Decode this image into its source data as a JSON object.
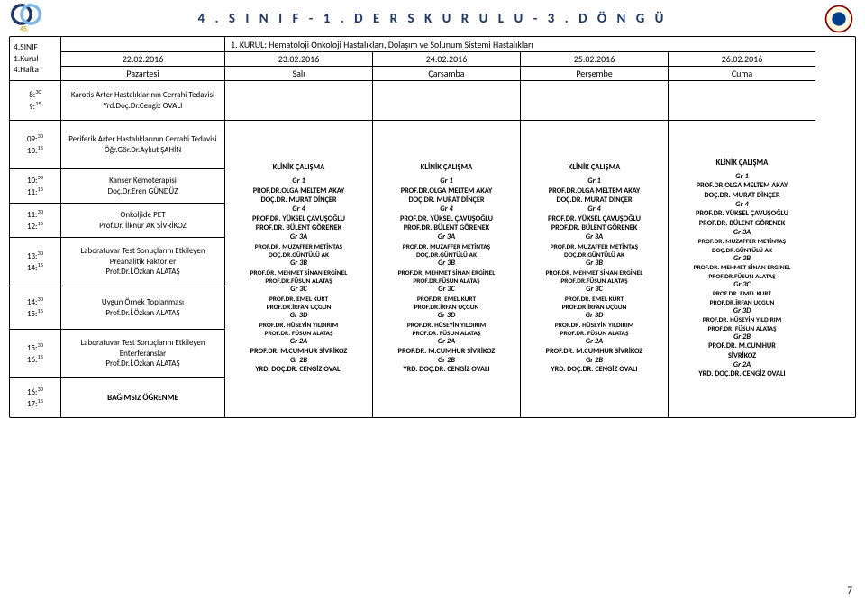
{
  "page_title": "4 . S I N I F -   1 . D E R S   K U R U L U -   3 . D Ö N G Ü",
  "page_number": "7",
  "meta": {
    "l1": "4.SINIF",
    "l2": "1.Kurul",
    "l3": "4.Hafta"
  },
  "kurul_title": "1. KURUL:  Hematoloji Onkoloji Hastalıkları, Dolaşım ve Solunum Sistemi Hastalıkları",
  "dates": [
    "22.02.2016",
    "23.02.2016",
    "24.02.2016",
    "25.02.2016",
    "26.02.2016"
  ],
  "days": [
    "Pazartesi",
    "Salı",
    "Çarşamba",
    "Perşembe",
    "Cuma"
  ],
  "time_rows": [
    {
      "t1": "8:",
      "s1": "30",
      "t2": "9:",
      "s2": "15"
    },
    {
      "t1": "09:",
      "s1": "30",
      "t2": "10:",
      "s2": "15"
    },
    {
      "t1": "10:",
      "s1": "30",
      "t2": "11:",
      "s2": "15"
    },
    {
      "t1": "11:",
      "s1": "30",
      "t2": "12:",
      "s2": "15"
    },
    {
      "t1": "13:",
      "s1": "30",
      "t2": "14:",
      "s2": "15"
    },
    {
      "t1": "14:",
      "s1": "30",
      "t2": "15:",
      "s2": "15"
    },
    {
      "t1": "15:",
      "s1": "30",
      "t2": "16:",
      "s2": "15"
    },
    {
      "t1": "16:",
      "s1": "30",
      "t2": "17:",
      "s2": "15"
    }
  ],
  "monday": {
    "r0": {
      "title": "Karotis Arter Hastalıklarının Cerrahi Tedavisi",
      "person": "Yrd.Doç.Dr.Cengiz OVALI"
    },
    "r1": {
      "title": "Periferik Arter Hastalıklarının Cerrahi Tedavisi",
      "person": "Öğr.Gör.Dr.Aykut ŞAHİN"
    },
    "r2": {
      "title": "Kanser Kemoterapisi",
      "person": "Doç.Dr.Eren GÜNDÜZ"
    },
    "r3": {
      "title": "Onkoljide PET",
      "person": "Prof.Dr. İlknur AK SİVRİKOZ"
    },
    "r4": {
      "title": "Laboratuvar Test Sonuçlarını Etkileyen Preanalitik Faktörler",
      "person": "Prof.Dr.İ.Özkan ALATAŞ"
    },
    "r5": {
      "title": "Uygun Örnek Toplanması",
      "person": "Prof.Dr.İ.Özkan ALATAŞ"
    },
    "r6": {
      "title": "Laboratuvar Test Sonuçlarını Etkileyen Enterferanslar",
      "person": "Prof.Dr.İ.Özkan ALATAŞ"
    },
    "r7": {
      "title": "BAĞIMSIZ ÖĞRENME"
    }
  },
  "klinik_block": {
    "header": "KLİNİK ÇALIŞMA",
    "lines": [
      "Gr 1",
      "PROF.DR.OLGA MELTEM AKAY",
      "DOÇ.DR. MURAT DİNÇER",
      "Gr 4",
      "PROF.DR. YÜKSEL ÇAVUŞOĞLU",
      "PROF.DR. BÜLENT GÖRENEK",
      "Gr 3A",
      "PROF.DR. MUZAFFER METİNTAŞ",
      "DOÇ.DR.GÜNTÜLÜ AK",
      "Gr 3B",
      "PROF.DR. MEHMET SİNAN ERGİNEL",
      "PROF.DR.FÜSUN ALATAŞ",
      "Gr 3C",
      "PROF.DR. EMEL KURT",
      "PROF.DR.İRFAN UÇGUN",
      "Gr 3D",
      "PROF.DR. HÜSEYİN YILDIRIM",
      "PROF.DR. FÜSUN ALATAŞ",
      "Gr 2A",
      "PROF.DR. M.CUMHUR SİVRİKOZ",
      "Gr 2B",
      "YRD. DOÇ.DR. CENGİZ OVALI"
    ],
    "italic_indices": [
      0,
      3,
      6,
      9,
      12,
      15,
      18,
      20
    ]
  },
  "klinik_block_friday": {
    "header": "KLİNİK ÇALIŞMA",
    "lines": [
      "Gr 1",
      "PROF.DR.OLGA MELTEM AKAY",
      "DOÇ.DR. MURAT DİNÇER",
      "Gr 4",
      "PROF.DR. YÜKSEL ÇAVUŞOĞLU",
      "PROF.DR. BÜLENT GÖRENEK",
      "Gr 3A",
      "PROF.DR. MUZAFFER METİNTAŞ",
      "DOÇ.DR.GÜNTÜLÜ AK",
      "Gr 3B",
      "PROF.DR. MEHMET SİNAN ERGİNEL",
      "PROF.DR.FÜSUN ALATAŞ",
      "Gr 3C",
      "PROF.DR. EMEL KURT",
      "PROF.DR.İRFAN UÇGUN",
      "Gr 3D",
      "PROF.DR. HÜSEYİN YILDIRIM",
      "PROF.DR. FÜSUN ALATAŞ",
      "Gr 2B",
      "PROF.DR. M.CUMHUR",
      "SİVRİKOZ",
      "Gr 2A",
      "YRD. DOÇ.DR. CENGİZ OVALI"
    ],
    "italic_indices": [
      0,
      3,
      6,
      9,
      12,
      15,
      18,
      21
    ]
  },
  "colors": {
    "title": "#1f3864",
    "border": "#000000",
    "italic": "#000000"
  }
}
